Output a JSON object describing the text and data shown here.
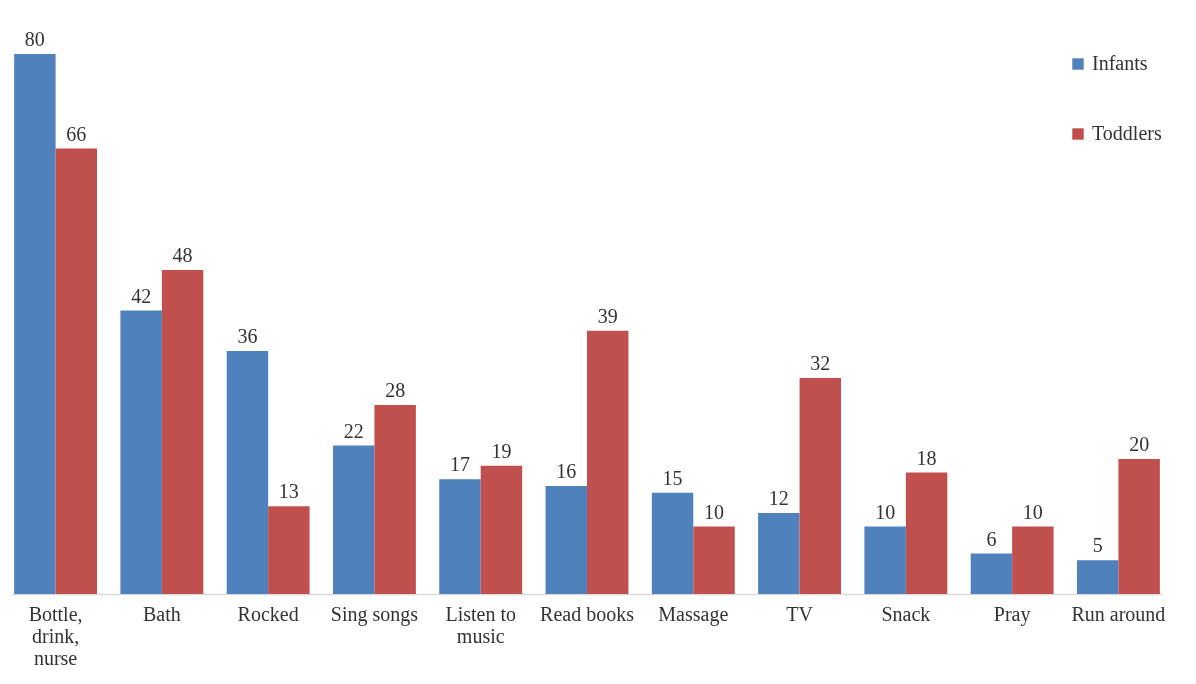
{
  "chart_data": {
    "type": "bar",
    "categories": [
      "Bottle, drink, nurse",
      "Bath",
      "Rocked",
      "Sing songs",
      "Listen to music",
      "Read books",
      "Massage",
      "TV",
      "Snack",
      "Pray",
      "Run around"
    ],
    "series": [
      {
        "name": "Infants",
        "color": "#4f81bd",
        "values": [
          80,
          42,
          36,
          22,
          17,
          16,
          15,
          12,
          10,
          6,
          5
        ]
      },
      {
        "name": "Toddlers",
        "color": "#c0504d",
        "values": [
          66,
          48,
          13,
          28,
          19,
          39,
          10,
          32,
          18,
          10,
          20
        ]
      }
    ],
    "data_labels": true,
    "legend": "top right",
    "grid": false,
    "tick_labels": "x"
  }
}
